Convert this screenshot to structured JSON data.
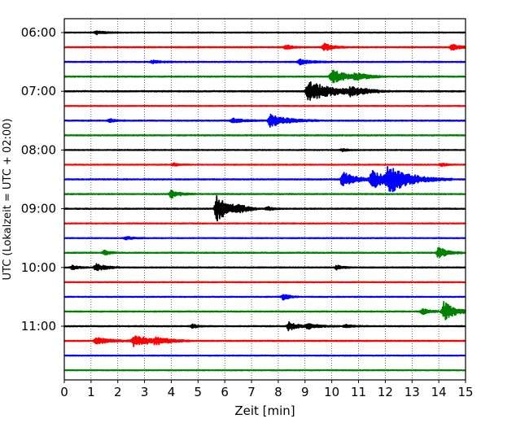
{
  "chart_data": {
    "type": "line",
    "title": "",
    "xlabel": "Zeit  [min]",
    "ylabel": "UTC (Lokalzeit = UTC + 02:00)",
    "xlim": [
      0,
      15
    ],
    "x_ticks": [
      "0",
      "1",
      "2",
      "3",
      "4",
      "5",
      "6",
      "7",
      "8",
      "9",
      "10",
      "11",
      "12",
      "13",
      "14",
      "15"
    ],
    "y_ticks": [
      "06:00",
      "07:00",
      "08:00",
      "09:00",
      "10:00",
      "11:00"
    ],
    "y_tick_rows": [
      0,
      4,
      8,
      12,
      16,
      20
    ],
    "grid": "vertical dotted",
    "trace_colors": [
      "#000000",
      "#ff0000",
      "#0000ff",
      "#008000"
    ],
    "traces": [
      {
        "start": "06:00",
        "noise": 0.05,
        "events": [
          {
            "t": 1.2,
            "a": 0.25,
            "d": 0.3
          }
        ]
      },
      {
        "start": "06:15",
        "noise": 0.06,
        "events": [
          {
            "t": 8.3,
            "a": 0.35,
            "d": 0.2
          },
          {
            "t": 9.7,
            "a": 0.6,
            "d": 0.3
          },
          {
            "t": 14.5,
            "a": 0.4,
            "d": 0.3
          }
        ]
      },
      {
        "start": "06:30",
        "noise": 0.06,
        "events": [
          {
            "t": 3.3,
            "a": 0.2,
            "d": 0.3
          },
          {
            "t": 8.8,
            "a": 0.35,
            "d": 0.4
          }
        ]
      },
      {
        "start": "06:45",
        "noise": 0.06,
        "events": [
          {
            "t": 10.0,
            "a": 0.9,
            "d": 0.6
          },
          {
            "t": 10.9,
            "a": 0.35,
            "d": 0.4
          }
        ]
      },
      {
        "start": "07:00",
        "noise": 0.07,
        "events": [
          {
            "t": 9.1,
            "a": 1.4,
            "d": 0.9
          },
          {
            "t": 10.7,
            "a": 0.5,
            "d": 0.5
          }
        ]
      },
      {
        "start": "07:15",
        "noise": 0.05,
        "events": []
      },
      {
        "start": "07:30",
        "noise": 0.06,
        "events": [
          {
            "t": 1.7,
            "a": 0.25,
            "d": 0.2
          },
          {
            "t": 7.7,
            "a": 0.85,
            "d": 0.6
          },
          {
            "t": 6.3,
            "a": 0.3,
            "d": 0.4
          }
        ]
      },
      {
        "start": "07:45",
        "noise": 0.06,
        "events": []
      },
      {
        "start": "08:00",
        "noise": 0.05,
        "events": [
          {
            "t": 10.4,
            "a": 0.2,
            "d": 0.2
          }
        ]
      },
      {
        "start": "08:15",
        "noise": 0.05,
        "events": [
          {
            "t": 4.1,
            "a": 0.2,
            "d": 0.2
          },
          {
            "t": 14.1,
            "a": 0.2,
            "d": 0.2
          }
        ]
      },
      {
        "start": "08:30",
        "noise": 0.06,
        "events": [
          {
            "t": 10.4,
            "a": 1.0,
            "d": 0.5
          },
          {
            "t": 11.5,
            "a": 1.2,
            "d": 0.6
          },
          {
            "t": 12.1,
            "a": 1.6,
            "d": 0.8
          }
        ]
      },
      {
        "start": "08:45",
        "noise": 0.06,
        "events": [
          {
            "t": 4.0,
            "a": 0.5,
            "d": 0.3
          }
        ]
      },
      {
        "start": "09:00",
        "noise": 0.06,
        "events": [
          {
            "t": 5.7,
            "a": 1.8,
            "d": 0.5
          },
          {
            "t": 6.5,
            "a": 0.3,
            "d": 0.3
          },
          {
            "t": 7.6,
            "a": 0.25,
            "d": 0.2
          }
        ]
      },
      {
        "start": "09:15",
        "noise": 0.05,
        "events": []
      },
      {
        "start": "09:30",
        "noise": 0.05,
        "events": [
          {
            "t": 2.3,
            "a": 0.2,
            "d": 0.3
          }
        ]
      },
      {
        "start": "09:45",
        "noise": 0.06,
        "events": [
          {
            "t": 1.5,
            "a": 0.35,
            "d": 0.2
          },
          {
            "t": 14.0,
            "a": 0.9,
            "d": 0.3
          }
        ]
      },
      {
        "start": "10:00",
        "noise": 0.06,
        "events": [
          {
            "t": 0.3,
            "a": 0.3,
            "d": 0.2
          },
          {
            "t": 1.2,
            "a": 0.6,
            "d": 0.3
          },
          {
            "t": 10.2,
            "a": 0.3,
            "d": 0.2
          }
        ]
      },
      {
        "start": "10:15",
        "noise": 0.05,
        "events": []
      },
      {
        "start": "10:30",
        "noise": 0.05,
        "events": [
          {
            "t": 8.2,
            "a": 0.45,
            "d": 0.2
          }
        ]
      },
      {
        "start": "10:45",
        "noise": 0.06,
        "events": [
          {
            "t": 13.4,
            "a": 0.35,
            "d": 0.3
          },
          {
            "t": 14.2,
            "a": 1.3,
            "d": 0.4
          }
        ]
      },
      {
        "start": "11:00",
        "noise": 0.06,
        "events": [
          {
            "t": 4.8,
            "a": 0.25,
            "d": 0.2
          },
          {
            "t": 8.4,
            "a": 0.6,
            "d": 0.3
          },
          {
            "t": 9.1,
            "a": 0.35,
            "d": 0.4
          },
          {
            "t": 10.5,
            "a": 0.2,
            "d": 0.3
          }
        ]
      },
      {
        "start": "11:15",
        "noise": 0.06,
        "events": [
          {
            "t": 1.2,
            "a": 0.45,
            "d": 0.5
          },
          {
            "t": 2.6,
            "a": 0.75,
            "d": 0.7
          },
          {
            "t": 3.4,
            "a": 0.35,
            "d": 0.4
          }
        ]
      },
      {
        "start": "11:30",
        "noise": 0.05,
        "events": []
      },
      {
        "start": "11:45",
        "noise": 0.05,
        "events": []
      }
    ]
  }
}
